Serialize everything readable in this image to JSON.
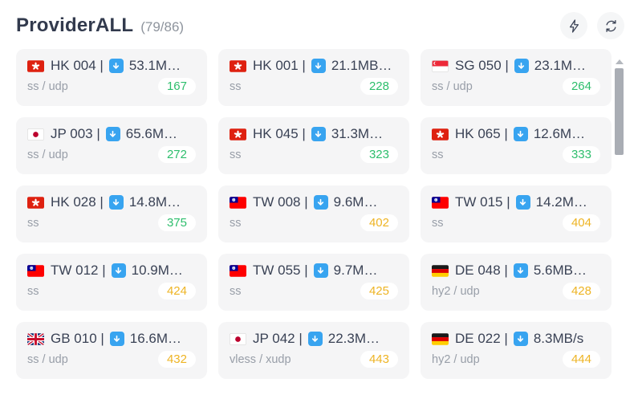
{
  "header": {
    "title": "ProviderALL",
    "count": "(79/86)",
    "speedtest_button": {
      "icon": "lightning-icon"
    },
    "refresh_button": {
      "icon": "refresh-icon"
    }
  },
  "colors": {
    "latency_green": "#2dbe6c",
    "latency_yellow": "#eeb424",
    "download_icon_blue": "#38a4f0",
    "card_background": "#f5f5f6"
  },
  "cards": [
    {
      "flag": "hk",
      "label": "HK 004 |",
      "speed": "53.1M…",
      "protocol": "ss / udp",
      "latency": "167",
      "latency_color": "green"
    },
    {
      "flag": "hk",
      "label": "HK 001 |",
      "speed": "21.1MB…",
      "protocol": "ss",
      "latency": "228",
      "latency_color": "green"
    },
    {
      "flag": "sg",
      "label": "SG 050 |",
      "speed": "23.1M…",
      "protocol": "ss / udp",
      "latency": "264",
      "latency_color": "green"
    },
    {
      "flag": "jp",
      "label": "JP 003 |",
      "speed": "65.6M…",
      "protocol": "ss / udp",
      "latency": "272",
      "latency_color": "green"
    },
    {
      "flag": "hk",
      "label": "HK 045 |",
      "speed": "31.3M…",
      "protocol": "ss",
      "latency": "323",
      "latency_color": "green"
    },
    {
      "flag": "hk",
      "label": "HK 065 |",
      "speed": "12.6M…",
      "protocol": "ss",
      "latency": "333",
      "latency_color": "green"
    },
    {
      "flag": "hk",
      "label": "HK 028 |",
      "speed": "14.8M…",
      "protocol": "ss",
      "latency": "375",
      "latency_color": "green"
    },
    {
      "flag": "tw",
      "label": "TW 008 |",
      "speed": "9.6M…",
      "protocol": "ss",
      "latency": "402",
      "latency_color": "yellow"
    },
    {
      "flag": "tw",
      "label": "TW 015 |",
      "speed": "14.2M…",
      "protocol": "ss",
      "latency": "404",
      "latency_color": "yellow"
    },
    {
      "flag": "tw",
      "label": "TW 012 |",
      "speed": "10.9M…",
      "protocol": "ss",
      "latency": "424",
      "latency_color": "yellow"
    },
    {
      "flag": "tw",
      "label": "TW 055 |",
      "speed": "9.7M…",
      "protocol": "ss",
      "latency": "425",
      "latency_color": "yellow"
    },
    {
      "flag": "de",
      "label": "DE 048 |",
      "speed": "5.6MB…",
      "protocol": "hy2 / udp",
      "latency": "428",
      "latency_color": "yellow"
    },
    {
      "flag": "gb",
      "label": "GB 010 |",
      "speed": "16.6M…",
      "protocol": "ss / udp",
      "latency": "432",
      "latency_color": "yellow"
    },
    {
      "flag": "jp",
      "label": "JP 042 |",
      "speed": "22.3M…",
      "protocol": "vless / xudp",
      "latency": "443",
      "latency_color": "yellow"
    },
    {
      "flag": "de",
      "label": "DE 022 |",
      "speed": "8.3MB/s",
      "protocol": "hy2 / udp",
      "latency": "444",
      "latency_color": "yellow"
    }
  ]
}
